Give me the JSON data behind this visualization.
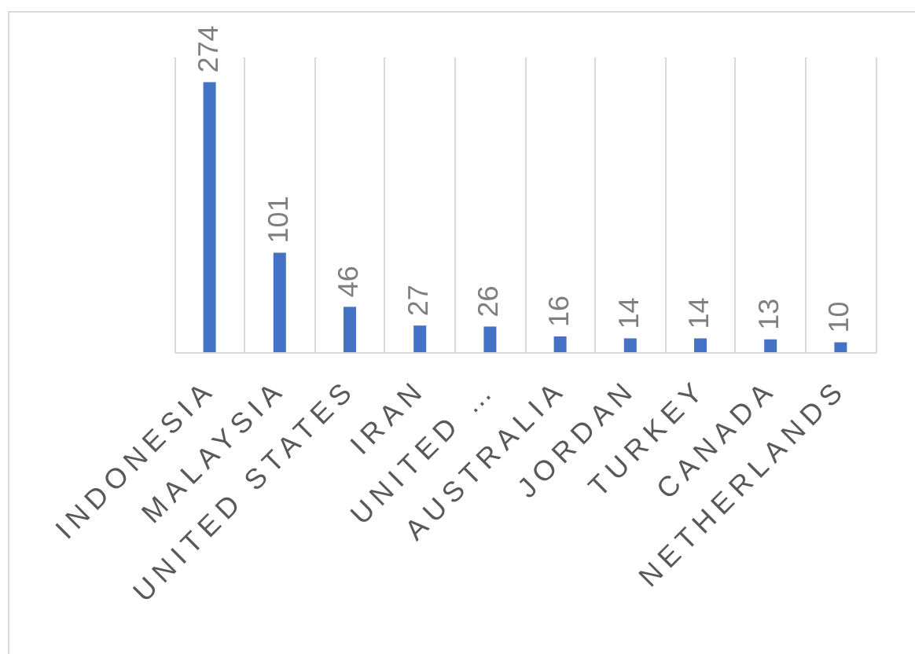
{
  "chart_data": {
    "type": "bar",
    "categories": [
      "INDONESIA",
      "MALAYSIA",
      "UNITED STATES",
      "IRAN",
      "UNITED …",
      "AUSTRALIA",
      "JORDAN",
      "TURKEY",
      "CANADA",
      "NETHERLANDS"
    ],
    "values": [
      274,
      101,
      46,
      27,
      26,
      16,
      14,
      14,
      13,
      10
    ],
    "color": "#4472c4",
    "ylim": [
      0,
      300
    ],
    "data_labels": true,
    "grid": "x"
  }
}
